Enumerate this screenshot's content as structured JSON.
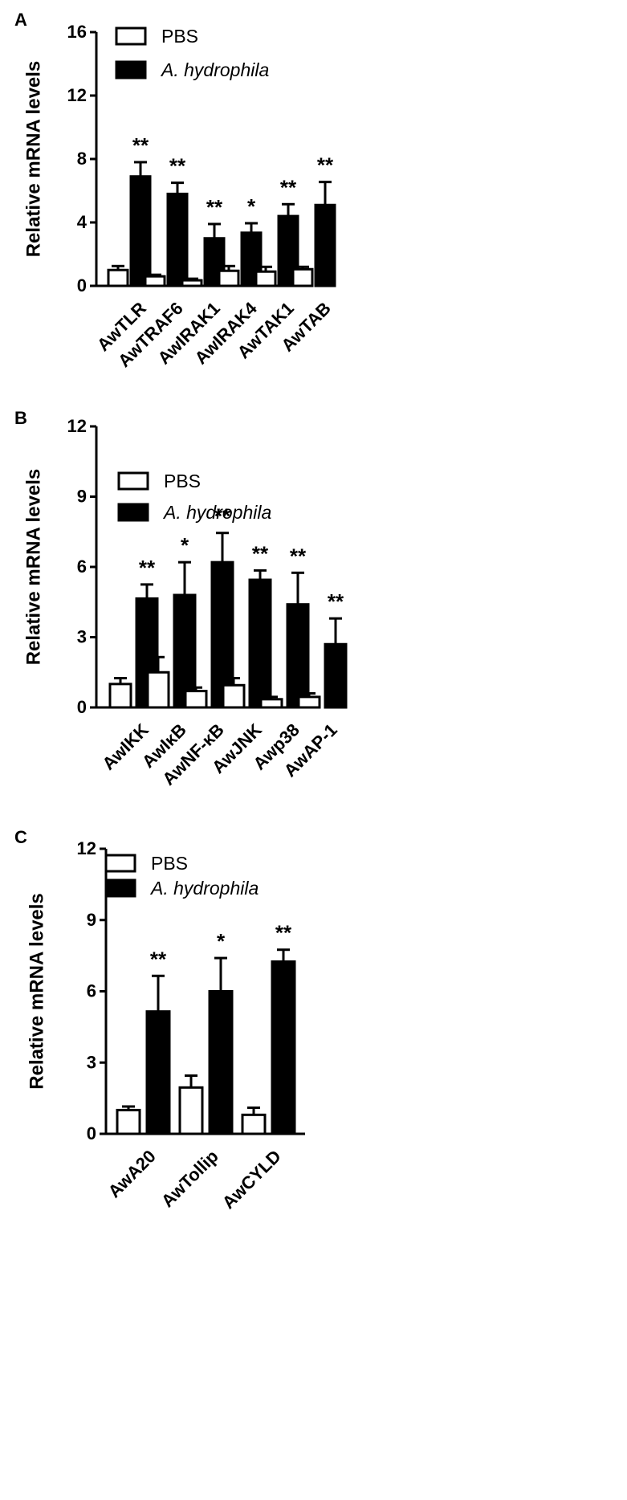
{
  "chart_data": [
    {
      "panel_label": "A",
      "type": "bar",
      "ylabel": "Relative mRNA levels",
      "ylim": [
        0,
        16
      ],
      "yticks": [
        0,
        4,
        8,
        12,
        16
      ],
      "categories": [
        "AwTLR",
        "AwTRAF6",
        "AwIRAK1",
        "AwIRAK4",
        "AwTAK1",
        "AwTAB"
      ],
      "series": [
        {
          "name": "PBS",
          "values": [
            1.0,
            0.6,
            0.35,
            0.95,
            0.9,
            1.05
          ],
          "errors": [
            0.25,
            0.1,
            0.1,
            0.3,
            0.3,
            0.15
          ],
          "fill": "#ffffff"
        },
        {
          "name": "A. hydrophila",
          "values": [
            6.9,
            5.8,
            3.0,
            3.35,
            4.4,
            5.1
          ],
          "errors": [
            0.9,
            0.7,
            0.9,
            0.6,
            0.75,
            1.45
          ],
          "fill": "#000000"
        }
      ],
      "significance": [
        "**",
        "**",
        "**",
        "*",
        "**",
        "**"
      ],
      "legend_position": "top-left"
    },
    {
      "panel_label": "B",
      "type": "bar",
      "ylabel": "Relative mRNA levels",
      "ylim": [
        0,
        12
      ],
      "yticks": [
        0,
        3,
        6,
        9,
        12
      ],
      "categories": [
        "AwIKK",
        "AwIκB",
        "AwNF-κB",
        "AwJNK",
        "Awp38",
        "AwAP-1"
      ],
      "series": [
        {
          "name": "PBS",
          "values": [
            1.0,
            1.5,
            0.7,
            0.95,
            0.35,
            0.45
          ],
          "errors": [
            0.25,
            0.65,
            0.15,
            0.3,
            0.1,
            0.15
          ],
          "fill": "#ffffff"
        },
        {
          "name": "A. hydrophila",
          "values": [
            4.65,
            4.8,
            6.2,
            5.45,
            4.4,
            2.7
          ],
          "errors": [
            0.6,
            1.4,
            1.25,
            0.4,
            1.35,
            1.1
          ],
          "fill": "#000000"
        }
      ],
      "significance": [
        "**",
        "*",
        "**",
        "**",
        "**",
        "**"
      ],
      "legend_position": "top-left"
    },
    {
      "panel_label": "C",
      "type": "bar",
      "ylabel": "Relative mRNA levels",
      "ylim": [
        0,
        12
      ],
      "yticks": [
        0,
        3,
        6,
        9,
        12
      ],
      "categories": [
        "AwA20",
        "AwTollip",
        "AwCYLD"
      ],
      "series": [
        {
          "name": "PBS",
          "values": [
            1.0,
            1.95,
            0.8
          ],
          "errors": [
            0.15,
            0.5,
            0.3
          ],
          "fill": "#ffffff"
        },
        {
          "name": "A. hydrophila",
          "values": [
            5.15,
            6.0,
            7.25
          ],
          "errors": [
            1.5,
            1.4,
            0.5
          ],
          "fill": "#000000"
        }
      ],
      "significance": [
        "**",
        "*",
        "**"
      ],
      "legend_position": "top-left"
    }
  ]
}
